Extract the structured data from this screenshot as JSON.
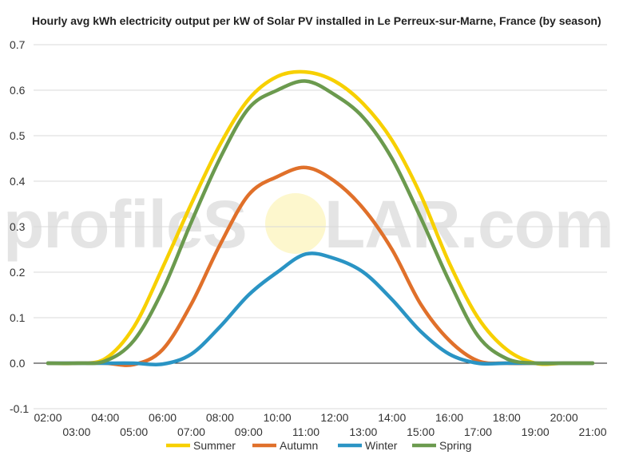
{
  "watermark": {
    "left": "profileS",
    "right": "LAR.com"
  },
  "chart_data": {
    "type": "line",
    "title": "Hourly avg kWh electricity output per kW of Solar PV installed in Le Perreux-sur-Marne, France (by season)",
    "xlabel": "",
    "ylabel": "",
    "ylim": [
      -0.1,
      0.7
    ],
    "yticks": [
      "0.7",
      "0.6",
      "0.5",
      "0.4",
      "0.3",
      "0.2",
      "0.1",
      "0.0",
      "-0.1"
    ],
    "x": [
      "02:00",
      "03:00",
      "04:00",
      "05:00",
      "06:00",
      "07:00",
      "08:00",
      "09:00",
      "10:00",
      "11:00",
      "12:00",
      "13:00",
      "14:00",
      "15:00",
      "16:00",
      "17:00",
      "18:00",
      "19:00",
      "20:00",
      "21:00"
    ],
    "xticks_upper": [
      "02:00",
      "04:00",
      "06:00",
      "08:00",
      "10:00",
      "12:00",
      "14:00",
      "16:00",
      "18:00",
      "20:00"
    ],
    "xticks_lower": [
      "03:00",
      "05:00",
      "07:00",
      "09:00",
      "11:00",
      "13:00",
      "15:00",
      "17:00",
      "19:00",
      "21:00"
    ],
    "grid": true,
    "legend_position": "bottom",
    "series": [
      {
        "name": "Summer",
        "color": "#f7d000",
        "values": [
          0.0,
          0.0,
          0.01,
          0.08,
          0.21,
          0.35,
          0.48,
          0.58,
          0.63,
          0.64,
          0.62,
          0.57,
          0.49,
          0.37,
          0.22,
          0.1,
          0.03,
          0.0,
          0.0,
          0.0
        ]
      },
      {
        "name": "Autumn",
        "color": "#e0702a",
        "values": [
          0.0,
          0.0,
          0.0,
          -0.003,
          0.03,
          0.13,
          0.26,
          0.37,
          0.41,
          0.43,
          0.4,
          0.34,
          0.25,
          0.13,
          0.05,
          0.005,
          0.0,
          0.0,
          0.0,
          0.0
        ]
      },
      {
        "name": "Winter",
        "color": "#2a94c4",
        "values": [
          0.0,
          0.0,
          0.0,
          0.0,
          -0.002,
          0.02,
          0.08,
          0.15,
          0.2,
          0.24,
          0.23,
          0.2,
          0.14,
          0.07,
          0.02,
          0.0,
          0.0,
          0.0,
          0.0,
          0.0
        ]
      },
      {
        "name": "Spring",
        "color": "#6b9a4e",
        "values": [
          0.0,
          0.0,
          0.005,
          0.05,
          0.16,
          0.31,
          0.45,
          0.56,
          0.6,
          0.62,
          0.59,
          0.54,
          0.45,
          0.32,
          0.18,
          0.06,
          0.01,
          0.0,
          0.0,
          0.0
        ]
      }
    ]
  }
}
